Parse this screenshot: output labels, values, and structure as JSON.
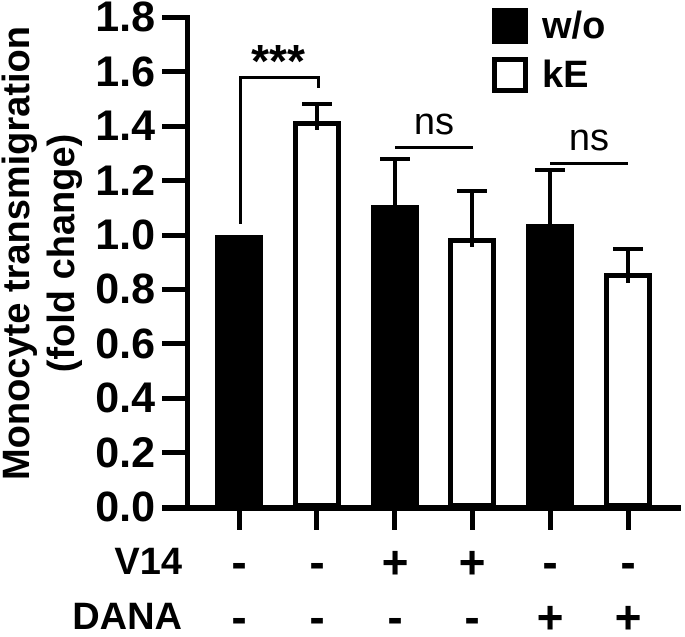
{
  "figure": {
    "background_color": "#ffffff",
    "ink_color": "#000000"
  },
  "chart_data": {
    "type": "bar",
    "title": "",
    "ylabel": "Monocyte transmigration (fold change)",
    "ylabel_lines": [
      "Monocyte transmigration",
      "(fold change)"
    ],
    "ylim": [
      0.0,
      1.8
    ],
    "ytick_step": 0.2,
    "yticks": [
      "0.0",
      "0.2",
      "0.4",
      "0.6",
      "0.8",
      "1.0",
      "1.2",
      "1.4",
      "1.6",
      "1.8"
    ],
    "grid": false,
    "legend_position": "top-right",
    "legend": {
      "items": [
        {
          "label": "w/o",
          "swatch": "filled-black"
        },
        {
          "label": "kE",
          "swatch": "open-white"
        }
      ]
    },
    "series": [
      {
        "name": "w/o",
        "style": "filled-black",
        "fill": "#000000",
        "values": [
          1.0,
          1.11,
          1.04
        ],
        "errors_plus": [
          0,
          0.17,
          0.2
        ]
      },
      {
        "name": "kE",
        "style": "open-white",
        "fill": "#ffffff",
        "values": [
          1.42,
          0.99,
          0.86
        ],
        "errors_plus": [
          0.06,
          0.17,
          0.09
        ]
      }
    ],
    "bar_layout": "alternating w/o, kE across 3 condition groups (6 bars total)",
    "condition_rows": [
      {
        "label": "V14",
        "signs": [
          "-",
          "-",
          "+",
          "+",
          "-",
          "-"
        ]
      },
      {
        "label": "DANA",
        "signs": [
          "-",
          "-",
          "-",
          "-",
          "+",
          "+"
        ]
      }
    ],
    "annotations": [
      {
        "kind": "bracket",
        "label": "***",
        "from_bar": 0,
        "to_bar": 1,
        "top_value": 1.585,
        "left_drop_to": 1.04,
        "right_drop_to": 1.54
      },
      {
        "kind": "line",
        "label": "ns",
        "from_bar": 2,
        "to_bar": 3,
        "value": 1.327
      },
      {
        "kind": "line",
        "label": "ns",
        "from_bar": 4,
        "to_bar": 5,
        "value": 1.27
      }
    ]
  }
}
